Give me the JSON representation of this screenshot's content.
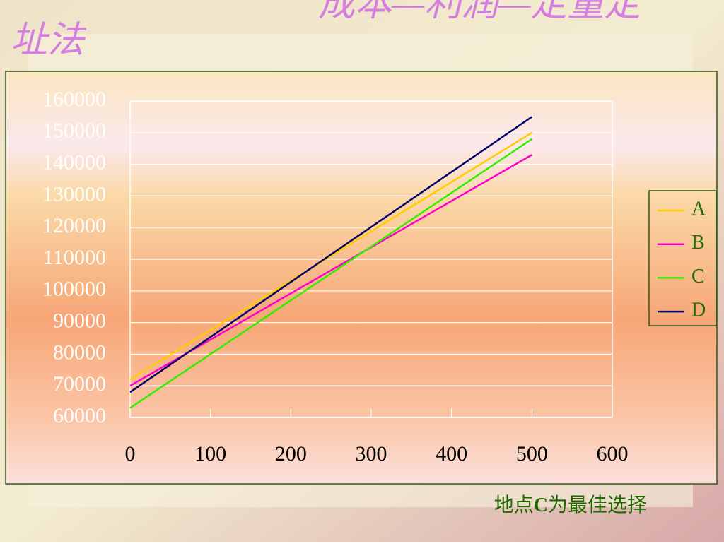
{
  "chart_data": {
    "type": "line",
    "title_lines": [
      "成本—利润—定量定",
      "址法"
    ],
    "annotation": {
      "prefix": "地点",
      "emphasis": "C",
      "suffix": "为最佳选择"
    },
    "x": [
      0,
      500
    ],
    "series": [
      {
        "name": "A",
        "color": "#ffcc00",
        "values": [
          72000,
          150000
        ]
      },
      {
        "name": "B",
        "color": "#ff00cc",
        "values": [
          70000,
          143000
        ]
      },
      {
        "name": "C",
        "color": "#33ee00",
        "values": [
          63000,
          148000
        ]
      },
      {
        "name": "D",
        "color": "#000066",
        "values": [
          68000,
          155000
        ]
      }
    ],
    "xlim": [
      0,
      600
    ],
    "xticks": [
      0,
      100,
      200,
      300,
      400,
      500,
      600
    ],
    "ylim": [
      60000,
      160000
    ],
    "yticks": [
      60000,
      70000,
      80000,
      90000,
      100000,
      110000,
      120000,
      130000,
      140000,
      150000,
      160000
    ],
    "grid": true,
    "legend": "right"
  }
}
